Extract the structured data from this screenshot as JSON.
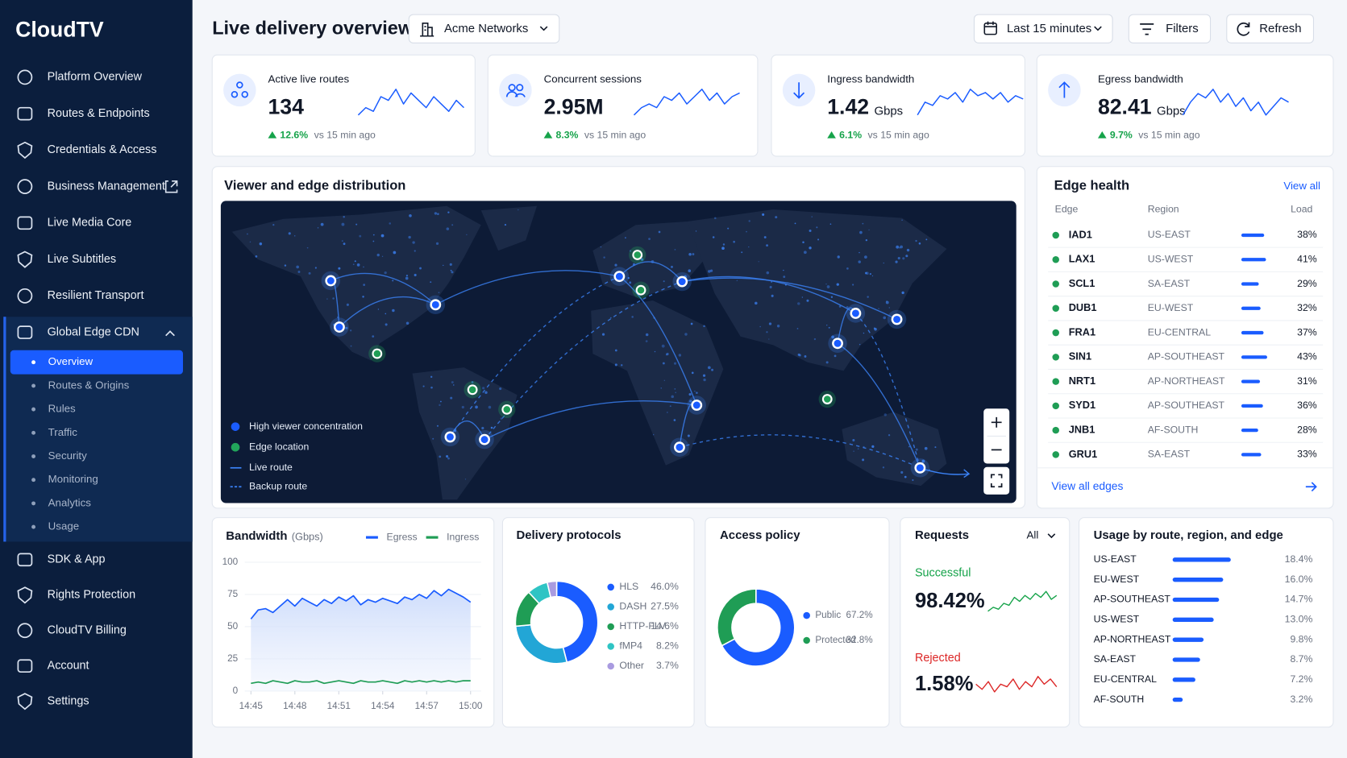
{
  "sidebar": {
    "brand": "CloudTV",
    "nav": [
      "Platform Overview",
      "Routes & Endpoints",
      "Credentials & Access",
      "Business Management",
      "Live Media Core",
      "Live Subtitles",
      "Resilient Transport",
      "Global Edge CDN"
    ],
    "subnav": [
      "Overview",
      "Routes & Origins",
      "Rules",
      "Traffic",
      "Security",
      "Monitoring",
      "Analytics",
      "Usage"
    ],
    "nav_bottom": [
      "SDK & App",
      "Rights Protection",
      "CloudTV Billing",
      "Account",
      "Settings"
    ]
  },
  "header": {
    "title": "Live delivery overview",
    "organization": "Acme Networks",
    "time_range": "Last 15 minutes",
    "filters": "Filters",
    "refresh": "Refresh"
  },
  "kpis": [
    {
      "label": "Active live routes",
      "value": "134",
      "change": "12.6%",
      "comparison": "vs 15 min ago",
      "trend": [
        8,
        10,
        9,
        13,
        12,
        15,
        11,
        14,
        12,
        10,
        13,
        11,
        9,
        12,
        10
      ]
    },
    {
      "label": "Concurrent sessions",
      "value": "2.95M",
      "change": "8.3%",
      "comparison": "vs 15 min ago",
      "trend": [
        6,
        8,
        9,
        8,
        11,
        10,
        12,
        9,
        11,
        13,
        10,
        12,
        9,
        11,
        12
      ]
    },
    {
      "label": "Ingress bandwidth",
      "value": "1.42",
      "unit": "Gbps",
      "change": "6.1%",
      "comparison": "vs 15 min ago",
      "trend": [
        5,
        9,
        8,
        11,
        10,
        12,
        9,
        13,
        11,
        12,
        10,
        12,
        9,
        11,
        10
      ]
    },
    {
      "label": "Egress bandwidth",
      "value": "82.41",
      "unit": "Gbps",
      "change": "9.7%",
      "comparison": "vs 15 min ago",
      "trend": [
        7,
        10,
        12,
        11,
        13,
        10,
        12,
        9,
        11,
        8,
        10,
        7,
        9,
        11,
        10
      ]
    }
  ],
  "map": {
    "title": "Viewer and edge distribution",
    "legend": [
      "High viewer concentration",
      "Edge location",
      "Live route",
      "Backup route"
    ]
  },
  "edge_health": {
    "title": "Edge health",
    "link": "View all",
    "columns": [
      "Edge",
      "Region",
      "Load"
    ],
    "rows": [
      {
        "edge": "IAD1",
        "region": "US-EAST",
        "load": 38,
        "load_label": "38%"
      },
      {
        "edge": "LAX1",
        "region": "US-WEST",
        "load": 41,
        "load_label": "41%"
      },
      {
        "edge": "SCL1",
        "region": "SA-EAST",
        "load": 29,
        "load_label": "29%"
      },
      {
        "edge": "DUB1",
        "region": "EU-WEST",
        "load": 32,
        "load_label": "32%"
      },
      {
        "edge": "FRA1",
        "region": "EU-CENTRAL",
        "load": 37,
        "load_label": "37%"
      },
      {
        "edge": "SIN1",
        "region": "AP-SOUTHEAST",
        "load": 43,
        "load_label": "43%"
      },
      {
        "edge": "NRT1",
        "region": "AP-NORTHEAST",
        "load": 31,
        "load_label": "31%"
      },
      {
        "edge": "SYD1",
        "region": "AP-SOUTHEAST",
        "load": 36,
        "load_label": "36%"
      },
      {
        "edge": "JNB1",
        "region": "AF-SOUTH",
        "load": 28,
        "load_label": "28%"
      },
      {
        "edge": "GRU1",
        "region": "SA-EAST",
        "load": 33,
        "load_label": "33%"
      }
    ],
    "footer": "View all edges"
  },
  "chart_data": [
    {
      "type": "line",
      "title": "Bandwidth",
      "subtitle": "(Gbps)",
      "x": [
        0,
        0.5,
        1,
        1.5,
        2,
        2.5,
        3,
        3.5,
        4,
        4.5,
        5,
        5.5,
        6,
        6.5,
        7,
        7.5,
        8,
        8.5,
        9,
        9.5,
        10,
        10.5,
        11,
        11.5,
        12,
        12.5,
        13,
        13.5,
        14,
        14.5,
        15
      ],
      "xlim": [
        -0.3,
        15.6
      ],
      "xticks": [
        {
          "value": 0,
          "label": "14:45"
        },
        {
          "value": 3,
          "label": "14:48"
        },
        {
          "value": 6,
          "label": "14:51"
        },
        {
          "value": 9,
          "label": "14:54"
        },
        {
          "value": 12,
          "label": "14:57"
        },
        {
          "value": 15,
          "label": "15:00"
        }
      ],
      "ylim": [
        0,
        100
      ],
      "yticks": [
        0,
        25,
        50,
        75,
        100
      ],
      "grid": true,
      "series": [
        {
          "name": "Egress",
          "color": "#1a5cff",
          "values": [
            56,
            63,
            64,
            61,
            66,
            71,
            66,
            72,
            69,
            66,
            71,
            68,
            73,
            70,
            74,
            67,
            71,
            69,
            72,
            70,
            68,
            73,
            71,
            75,
            72,
            78,
            74,
            79,
            76,
            73,
            69
          ]
        },
        {
          "name": "Ingress",
          "color": "#1f9d55",
          "values": [
            6,
            7,
            6,
            8,
            7,
            6,
            8,
            7,
            7,
            8,
            6,
            7,
            8,
            7,
            6,
            8,
            7,
            7,
            8,
            7,
            6,
            8,
            7,
            8,
            7,
            8,
            7,
            8,
            7,
            8,
            8
          ]
        }
      ]
    },
    {
      "type": "pie",
      "title": "Delivery protocols",
      "categories": [
        "HLS",
        "DASH",
        "HTTP-FLV",
        "fMP4",
        "Other"
      ],
      "values": [
        46.0,
        27.5,
        14.6,
        8.2,
        3.7
      ],
      "value_labels": [
        "46.0%",
        "27.5%",
        "14.6%",
        "8.2%",
        "3.7%"
      ],
      "colors": [
        "#1a5cff",
        "#22a6d6",
        "#1f9d55",
        "#2fc4c4",
        "#a99be0"
      ]
    },
    {
      "type": "pie",
      "title": "Access policy",
      "categories": [
        "Public",
        "Protected"
      ],
      "values": [
        67.2,
        32.8
      ],
      "value_labels": [
        "67.2%",
        "32.8%"
      ],
      "colors": [
        "#1a5cff",
        "#1f9d55"
      ]
    },
    {
      "type": "bar",
      "orientation": "horizontal",
      "title": "Usage by route, region, and edge",
      "categories": [
        "US-EAST",
        "EU-WEST",
        "AP-SOUTHEAST",
        "US-WEST",
        "AP-NORTHEAST",
        "SA-EAST",
        "EU-CENTRAL",
        "AF-SOUTH"
      ],
      "values": [
        18.4,
        16.0,
        14.7,
        13.0,
        9.8,
        8.7,
        7.2,
        3.2
      ],
      "value_labels": [
        "18.4%",
        "16.0%",
        "14.7%",
        "13.0%",
        "9.8%",
        "8.7%",
        "7.2%",
        "3.2%"
      ],
      "color": "#1a5cff",
      "xlim": [
        0,
        25
      ]
    }
  ],
  "requests": {
    "title": "Requests",
    "filter": "All",
    "success_label": "Successful",
    "success_value": "98.42%",
    "success_trend": [
      5,
      7,
      6,
      9,
      8,
      12,
      10,
      13,
      11,
      14,
      12,
      15,
      11,
      13
    ],
    "rejected_label": "Rejected",
    "rejected_value": "1.58%",
    "rejected_trend": [
      6,
      4,
      7,
      3,
      6,
      5,
      8,
      4,
      7,
      5,
      9,
      6,
      8,
      5
    ]
  }
}
